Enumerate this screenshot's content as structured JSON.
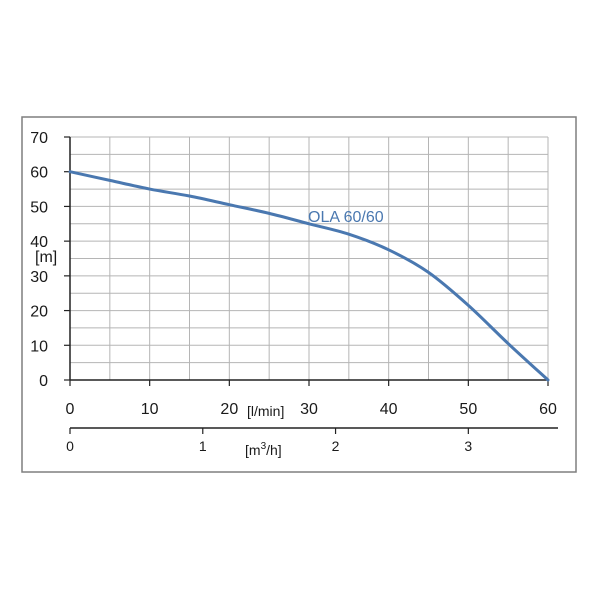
{
  "chart_data": {
    "type": "line",
    "series": [
      {
        "name": "OLA 60/60",
        "x": [
          0,
          5,
          10,
          15,
          20,
          25,
          30,
          35,
          40,
          45,
          50,
          55,
          60
        ],
        "y": [
          60,
          57.5,
          55,
          53,
          50.5,
          48,
          45,
          42,
          37.5,
          31,
          21.5,
          10.5,
          0
        ]
      }
    ],
    "xlabel": "[l/min]",
    "ylabel": "[m]",
    "xlim": [
      0,
      60
    ],
    "ylim": [
      0,
      70
    ],
    "x_ticks": [
      "0",
      "10",
      "20",
      "30",
      "40",
      "50",
      "60"
    ],
    "y_ticks": [
      "0",
      "10",
      "20",
      "30",
      "40",
      "50",
      "60",
      "70"
    ],
    "secondary_x_axis": {
      "label_base": "[m",
      "label_sup": "3",
      "label_end": "/h]",
      "ticks": [
        {
          "value": 0,
          "label": "0"
        },
        {
          "value": 1,
          "label": "1"
        },
        {
          "value": 2,
          "label": "2"
        },
        {
          "value": 3,
          "label": "3"
        }
      ]
    },
    "grid": true,
    "colors": {
      "line": "#4a78b0",
      "grid": "#b5b5b5",
      "axis": "#222222",
      "frame": "#7f7f7f"
    }
  }
}
